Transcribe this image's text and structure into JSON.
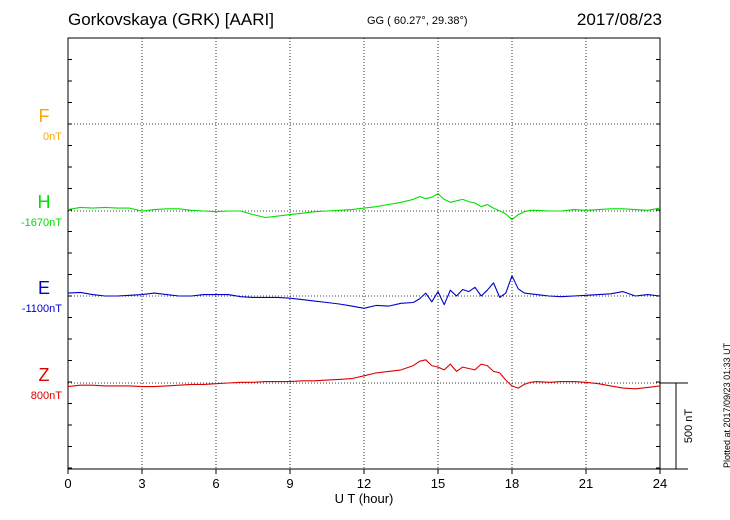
{
  "header": {
    "station": "Gorkovskaya (GRK)  [AARI]",
    "coords": "GG ( 60.27°,  29.38°)",
    "date": "2017/08/23"
  },
  "footer": {
    "plotted": "Plotted at 2017/09/23 01:33 UT"
  },
  "chart_data": {
    "type": "line",
    "xlabel": "U T (hour)",
    "xlim": [
      0,
      24
    ],
    "xticks": [
      0,
      3,
      6,
      9,
      12,
      15,
      18,
      21,
      24
    ],
    "grid": true,
    "scale_bar": "500 nT",
    "colors": {
      "F": "#ffa500",
      "H": "#00e000",
      "E": "#0000cc",
      "Z": "#dd0000"
    },
    "series": [
      {
        "name": "F",
        "baseline": "0nT",
        "x": [],
        "values": []
      },
      {
        "name": "H",
        "baseline": "-1670nT",
        "x": [
          0,
          0.5,
          1,
          1.5,
          2,
          2.5,
          3,
          3.5,
          4,
          4.5,
          5,
          5.5,
          6,
          6.5,
          7,
          7.5,
          8,
          8.5,
          9,
          9.5,
          10,
          10.5,
          11,
          11.5,
          12,
          12.5,
          13,
          13.5,
          14,
          14.25,
          14.5,
          14.75,
          15,
          15.25,
          15.5,
          15.75,
          16,
          16.25,
          16.5,
          16.75,
          17,
          17.25,
          17.5,
          17.75,
          18,
          18.25,
          18.5,
          18.75,
          19,
          19.5,
          20,
          20.5,
          21,
          21.5,
          22,
          22.5,
          23,
          23.5,
          24
        ],
        "values": [
          10,
          25,
          20,
          25,
          20,
          20,
          0,
          10,
          15,
          15,
          5,
          0,
          -5,
          0,
          0,
          -25,
          -45,
          -35,
          -25,
          -15,
          -5,
          0,
          5,
          10,
          20,
          30,
          45,
          60,
          80,
          100,
          85,
          95,
          120,
          80,
          60,
          70,
          80,
          65,
          55,
          30,
          45,
          20,
          0,
          -20,
          -60,
          -25,
          -5,
          5,
          5,
          0,
          0,
          10,
          5,
          10,
          15,
          15,
          10,
          5,
          20
        ]
      },
      {
        "name": "E",
        "baseline": "-1100nT",
        "x": [
          0,
          0.5,
          1,
          1.5,
          2,
          2.5,
          3,
          3.5,
          4,
          4.5,
          5,
          5.5,
          6,
          6.5,
          7,
          7.5,
          8,
          8.5,
          9,
          9.5,
          10,
          10.5,
          11,
          11.5,
          12,
          12.5,
          13,
          13.5,
          14,
          14.25,
          14.5,
          14.75,
          15,
          15.25,
          15.5,
          15.75,
          16,
          16.25,
          16.5,
          16.75,
          17,
          17.25,
          17.5,
          17.75,
          18,
          18.25,
          18.5,
          18.75,
          19,
          19.5,
          20,
          20.5,
          21,
          21.5,
          22,
          22.5,
          23,
          23.5,
          24
        ],
        "values": [
          20,
          25,
          10,
          0,
          0,
          5,
          10,
          20,
          10,
          0,
          0,
          10,
          10,
          10,
          -5,
          -10,
          -10,
          -10,
          -15,
          -25,
          -35,
          -45,
          -55,
          -70,
          -85,
          -65,
          -70,
          -50,
          -45,
          -20,
          20,
          -40,
          30,
          -60,
          40,
          0,
          45,
          30,
          60,
          0,
          40,
          90,
          -10,
          20,
          140,
          50,
          20,
          15,
          10,
          0,
          -5,
          0,
          5,
          10,
          15,
          30,
          0,
          10,
          0
        ]
      },
      {
        "name": "Z",
        "baseline": "800nT",
        "x": [
          0,
          0.5,
          1,
          1.5,
          2,
          2.5,
          3,
          3.5,
          4,
          4.5,
          5,
          5.5,
          6,
          6.5,
          7,
          7.5,
          8,
          8.5,
          9,
          9.5,
          10,
          10.5,
          11,
          11.5,
          12,
          12.5,
          13,
          13.5,
          14,
          14.25,
          14.5,
          14.75,
          15,
          15.25,
          15.5,
          15.75,
          16,
          16.25,
          16.5,
          16.75,
          17,
          17.25,
          17.5,
          17.75,
          18,
          18.25,
          18.5,
          18.75,
          19,
          19.5,
          20,
          20.5,
          21,
          21.5,
          22,
          22.5,
          23,
          23.5,
          24
        ],
        "values": [
          -25,
          -15,
          -15,
          -20,
          -20,
          -20,
          -25,
          -25,
          -20,
          -15,
          -10,
          -10,
          -5,
          0,
          5,
          5,
          10,
          10,
          10,
          15,
          15,
          20,
          25,
          30,
          50,
          70,
          80,
          90,
          120,
          150,
          160,
          120,
          110,
          90,
          130,
          80,
          110,
          100,
          90,
          130,
          120,
          80,
          70,
          20,
          -20,
          -35,
          -10,
          5,
          10,
          5,
          10,
          10,
          5,
          -5,
          -20,
          -35,
          -40,
          -30,
          -20
        ]
      }
    ]
  }
}
